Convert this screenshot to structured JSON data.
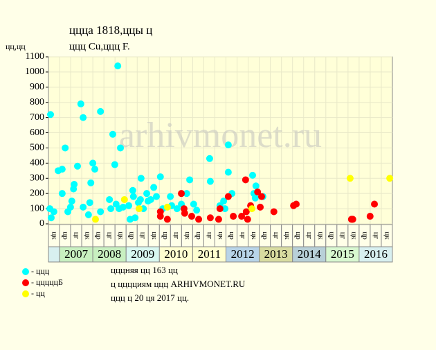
{
  "chart_data": {
    "type": "scatter",
    "title": "ццца 1818,ццы ц",
    "subtitle": "ццц Cu,ццц F.",
    "y_label": "цц,цц",
    "watermark": "arhivmonet.ru",
    "xlim": [
      2006.667,
      2017
    ],
    "ylim": [
      0,
      1100
    ],
    "yticks": [
      0,
      100,
      200,
      300,
      400,
      500,
      600,
      700,
      800,
      900,
      1000,
      1100
    ],
    "grid": true,
    "period_labels": [
      "цк",
      "цр",
      "цг",
      "цк",
      "цр",
      "цг",
      "цк",
      "цр",
      "цг",
      "цк",
      "цр",
      "цг",
      "цк",
      "цр",
      "цг",
      "цк",
      "цр",
      "цг",
      "цк",
      "цр",
      "цг",
      "цк",
      "цр",
      "цг",
      "цк",
      "цр",
      "цг",
      "цк",
      "цр",
      "цг",
      "цк"
    ],
    "year_labels": [
      "2007",
      "2008",
      "2009",
      "2010",
      "2011",
      "2012",
      "2013",
      "2014",
      "2015",
      "2016"
    ],
    "year_colors": [
      "#c8f0c0",
      "#c8f0c0",
      "#d8f8f0",
      "#ffffd0",
      "#ffffd0",
      "#b8d4e8",
      "#d8dca0",
      "#b8d0d8",
      "#d8f8d0",
      "#d8f0f0"
    ],
    "series": [
      {
        "name": "- ццц",
        "color": "#00ffff",
        "x": [
          2006.73,
          2006.71,
          2006.75,
          2006.83,
          2006.96,
          2007.08,
          2007.08,
          2007.17,
          2007.25,
          2007.33,
          2007.37,
          2007.42,
          2007.44,
          2007.54,
          2007.64,
          2007.71,
          2007.71,
          2007.87,
          2007.91,
          2007.94,
          2008.0,
          2008.06,
          2008.23,
          2008.23,
          2008.5,
          2008.54,
          2008.6,
          2008.66,
          2008.7,
          2008.75,
          2008.83,
          2008.79,
          2008.91,
          2009.08,
          2009.12,
          2009.2,
          2009.22,
          2009.27,
          2009.37,
          2009.43,
          2009.45,
          2009.52,
          2009.62,
          2009.66,
          2009.74,
          2009.83,
          2009.91,
          2010.03,
          2010.1,
          2010.33,
          2010.37,
          2010.53,
          2010.66,
          2010.82,
          2010.91,
          2011.03,
          2011.12,
          2011.51,
          2011.53,
          2011.82,
          2011.93,
          2011.97,
          2012.07,
          2012.07,
          2012.18,
          2012.8,
          2012.84,
          2012.9,
          2012.88,
          2013.11
        ],
        "values": [
          720,
          100,
          40,
          80,
          350,
          360,
          200,
          500,
          80,
          110,
          150,
          230,
          260,
          380,
          790,
          700,
          110,
          60,
          140,
          270,
          400,
          360,
          740,
          80,
          160,
          100,
          590,
          390,
          130,
          1040,
          500,
          100,
          110,
          120,
          30,
          220,
          180,
          40,
          140,
          160,
          300,
          100,
          200,
          150,
          160,
          240,
          180,
          310,
          100,
          180,
          120,
          100,
          130,
          200,
          290,
          130,
          90,
          430,
          280,
          120,
          150,
          100,
          520,
          340,
          200,
          320,
          200,
          250,
          170,
          180
        ]
      },
      {
        "name": "- цццццБ",
        "color": "#ff0000",
        "x": [
          2010.03,
          2010.03,
          2010.24,
          2010.66,
          2010.74,
          2010.76,
          2010.97,
          2011.18,
          2011.53,
          2011.78,
          2011.82,
          2012.07,
          2012.22,
          2012.47,
          2012.59,
          2012.61,
          2012.65,
          2012.74,
          2012.95,
          2013.03,
          2013.07,
          2013.44,
          2014.03,
          2014.11,
          2015.77,
          2015.81,
          2016.33,
          2016.46
        ],
        "values": [
          80,
          50,
          30,
          200,
          100,
          70,
          50,
          30,
          40,
          30,
          100,
          180,
          50,
          50,
          290,
          80,
          30,
          120,
          210,
          110,
          180,
          80,
          120,
          130,
          30,
          30,
          50,
          130
        ]
      },
      {
        "name": "- цц",
        "color": "#ffff00",
        "x": [
          2008.08,
          2008.95,
          2009.39,
          2010.24,
          2012.78,
          2015.73,
          2016.92
        ],
        "values": [
          30,
          160,
          100,
          110,
          100,
          300,
          300
        ]
      }
    ],
    "notes": [
      "цццняя цц 163 цц",
      "ц цццциям ццц ARHIVMONET.RU",
      "ццц ц 20 ця 2017 цц."
    ]
  }
}
